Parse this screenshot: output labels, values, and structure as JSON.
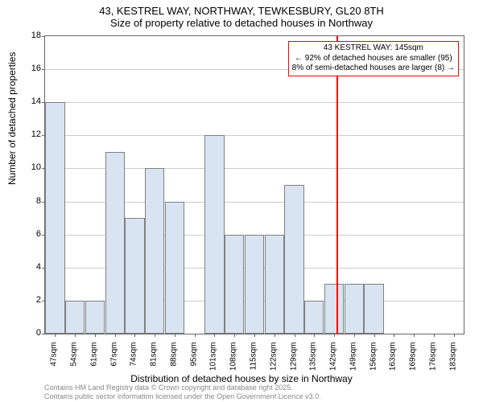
{
  "chart": {
    "type": "histogram",
    "title_line1": "43, KESTREL WAY, NORTHWAY, TEWKESBURY, GL20 8TH",
    "title_line2": "Size of property relative to detached houses in Northway",
    "ylabel": "Number of detached properties",
    "xlabel": "Distribution of detached houses by size in Northway",
    "ylim": [
      0,
      18
    ],
    "ytick_step": 2,
    "yticks": [
      0,
      2,
      4,
      6,
      8,
      10,
      12,
      14,
      16,
      18
    ],
    "xticks": [
      "47sqm",
      "54sqm",
      "61sqm",
      "67sqm",
      "74sqm",
      "81sqm",
      "88sqm",
      "95sqm",
      "101sqm",
      "108sqm",
      "115sqm",
      "122sqm",
      "129sqm",
      "135sqm",
      "142sqm",
      "149sqm",
      "156sqm",
      "163sqm",
      "169sqm",
      "176sqm",
      "183sqm"
    ],
    "bar_values": [
      14,
      2,
      2,
      11,
      7,
      10,
      8,
      0,
      12,
      6,
      6,
      6,
      9,
      2,
      3,
      3,
      3,
      0,
      0,
      0,
      0
    ],
    "bar_fill": "#d8e4f2",
    "bar_border": "#808080",
    "background_color": "#ffffff",
    "grid_color": "#cccccc",
    "ref_line_color": "#ff0000",
    "ref_line_index": 14.6,
    "annotation_line1": "43 KESTREL WAY: 145sqm",
    "annotation_line2": "← 92% of detached houses are smaller (95)",
    "annotation_line3": "8% of semi-detached houses are larger (8) →",
    "attribution_line1": "Contains HM Land Registry data © Crown copyright and database right 2025.",
    "attribution_line2": "Contains public sector information licensed under the Open Government Licence v3.0.",
    "title_fontsize": 13,
    "label_fontsize": 12,
    "tick_fontsize": 11
  }
}
